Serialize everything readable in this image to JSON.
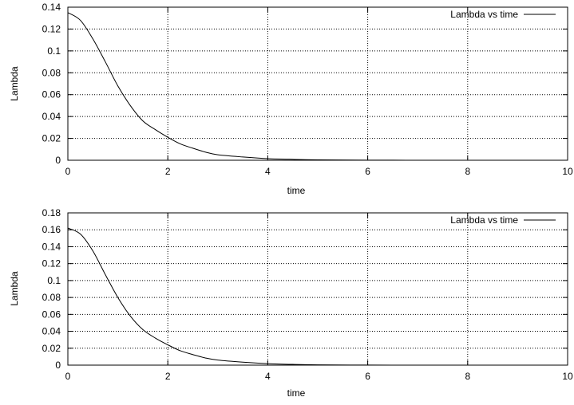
{
  "chart_data": [
    {
      "type": "line",
      "xlabel": "time",
      "ylabel": "Lambda",
      "xlim": [
        0,
        10
      ],
      "ylim": [
        0,
        0.14
      ],
      "xticks": [
        0,
        2,
        4,
        6,
        8,
        10
      ],
      "xtick_labels": [
        "0",
        "2",
        "4",
        "6",
        "8",
        "10"
      ],
      "yticks": [
        0,
        0.02,
        0.04,
        0.06,
        0.08,
        0.1,
        0.12,
        0.14
      ],
      "ytick_labels": [
        "0",
        "0.02",
        "0.04",
        "0.06",
        "0.08",
        "0.1",
        "0.12",
        "0.14"
      ],
      "grid": true,
      "legend_position": "top-right",
      "series": [
        {
          "name": "Lambda vs time",
          "color": "#000000",
          "x": [
            0,
            0.25,
            0.5,
            0.75,
            1,
            1.25,
            1.5,
            1.75,
            2,
            2.25,
            2.5,
            2.75,
            3,
            3.5,
            4,
            4.5,
            5,
            6,
            7,
            8,
            9,
            10
          ],
          "y": [
            0.135,
            0.128,
            0.111,
            0.09,
            0.068,
            0.05,
            0.036,
            0.028,
            0.021,
            0.015,
            0.011,
            0.0075,
            0.005,
            0.003,
            0.0015,
            0.0008,
            0.0004,
            0.0001,
            3e-05,
            1e-05,
            0,
            0
          ]
        }
      ]
    },
    {
      "type": "line",
      "xlabel": "time",
      "ylabel": "Lambda",
      "xlim": [
        0,
        10
      ],
      "ylim": [
        0,
        0.18
      ],
      "xticks": [
        0,
        2,
        4,
        6,
        8,
        10
      ],
      "xtick_labels": [
        "0",
        "2",
        "4",
        "6",
        "8",
        "10"
      ],
      "yticks": [
        0,
        0.02,
        0.04,
        0.06,
        0.08,
        0.1,
        0.12,
        0.14,
        0.16,
        0.18
      ],
      "ytick_labels": [
        "0",
        "0.02",
        "0.04",
        "0.06",
        "0.08",
        "0.1",
        "0.12",
        "0.14",
        "0.16",
        "0.18"
      ],
      "grid": true,
      "legend_position": "top-right",
      "series": [
        {
          "name": "Lambda vs time",
          "color": "#000000",
          "x": [
            0,
            0.25,
            0.5,
            0.75,
            1,
            1.25,
            1.5,
            1.75,
            2,
            2.25,
            2.5,
            2.75,
            3,
            3.5,
            4,
            4.5,
            5,
            6,
            7,
            8,
            9,
            10
          ],
          "y": [
            0.162,
            0.155,
            0.135,
            0.107,
            0.08,
            0.058,
            0.042,
            0.032,
            0.024,
            0.017,
            0.0125,
            0.0085,
            0.006,
            0.0035,
            0.0018,
            0.0009,
            0.0004,
            0.0001,
            3e-05,
            1e-05,
            0,
            0
          ]
        }
      ]
    }
  ]
}
